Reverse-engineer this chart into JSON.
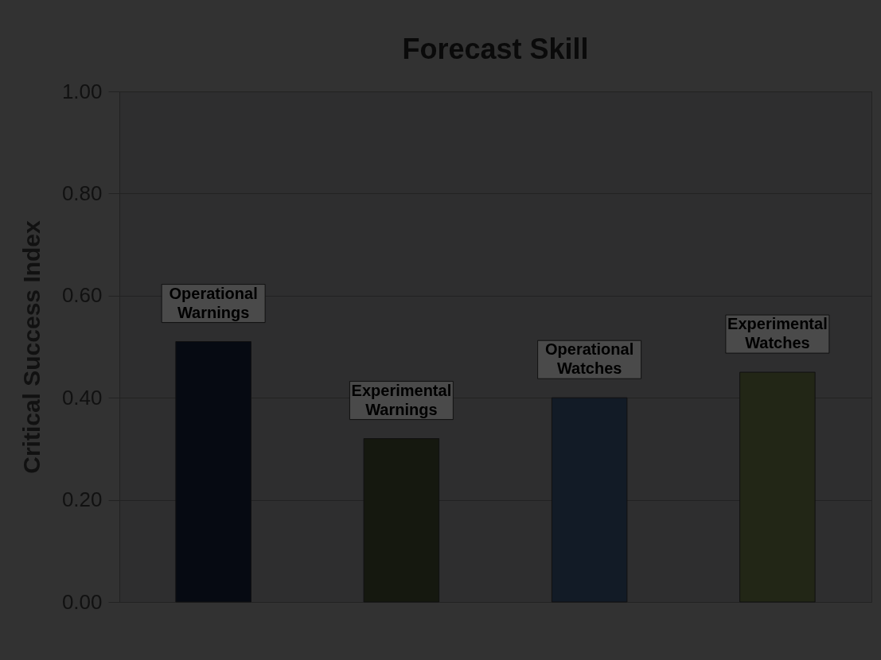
{
  "chart_data": {
    "type": "bar",
    "title": "Forecast Skill",
    "ylabel": "Critical Success Index",
    "categories": [
      "Operational Warnings",
      "Experimental Warnings",
      "Operational Watches",
      "Experimental Watches"
    ],
    "values": [
      0.51,
      0.32,
      0.4,
      0.45
    ],
    "colors": [
      "#060a12",
      "#15180f",
      "#121b26",
      "#222616"
    ],
    "ylim": [
      0,
      1
    ],
    "yticks": [
      {
        "value": 0,
        "label": "0.00"
      },
      {
        "value": 0.2,
        "label": "0.20"
      },
      {
        "value": 0.4,
        "label": "0.40"
      },
      {
        "value": 0.6,
        "label": "0.60"
      },
      {
        "value": 0.8,
        "label": "0.80"
      },
      {
        "value": 1,
        "label": "1.00"
      }
    ],
    "grid": "y",
    "tick_labels": "y"
  }
}
